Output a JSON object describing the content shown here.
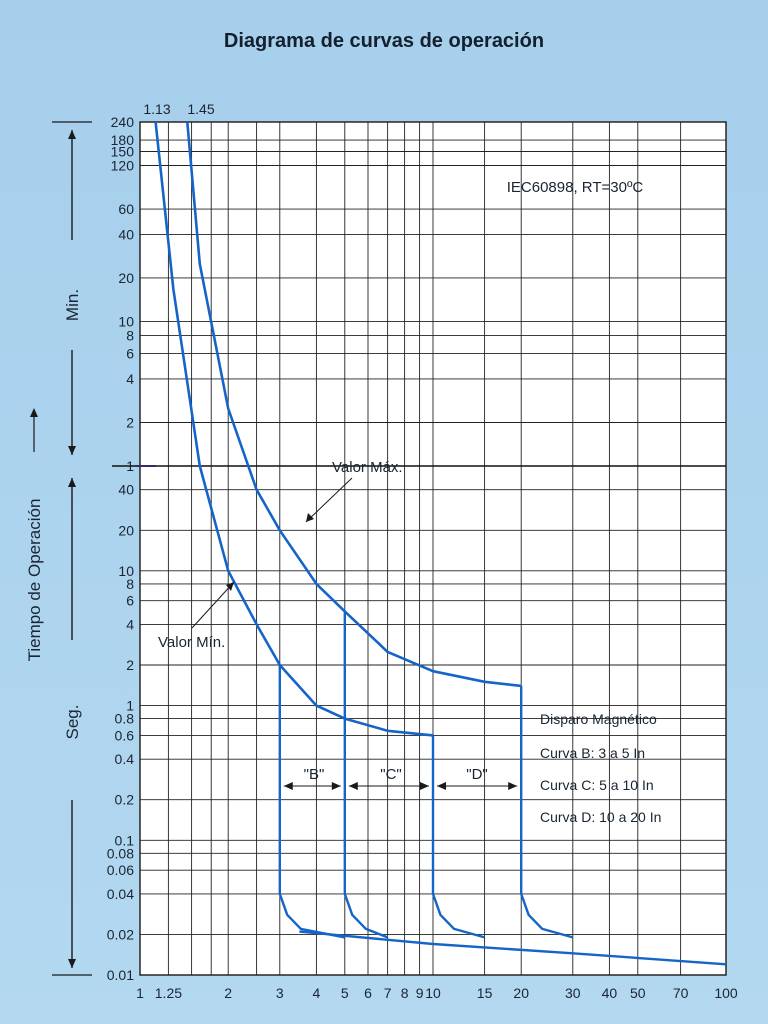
{
  "title": "Diagrama de curvas de operación",
  "chart_data": {
    "type": "line",
    "title": "Diagrama de curvas de operación",
    "xlabel": "",
    "ylabel": "Tiempo de Operación",
    "y_sections": {
      "upper": "Min.",
      "lower": "Seg."
    },
    "x_scale": "log",
    "xlim": [
      1,
      100
    ],
    "x_ticks": [
      "1",
      "1.25",
      "2",
      "3",
      "4",
      "5",
      "6",
      "7",
      "8",
      "9",
      "10",
      "15",
      "20",
      "30",
      "40",
      "50",
      "70",
      "100"
    ],
    "y_min_ticks": [
      "240",
      "180",
      "150",
      "120",
      "60",
      "40",
      "20",
      "10",
      "8",
      "6",
      "4",
      "2",
      "1"
    ],
    "y_sec_ticks": [
      "40",
      "20",
      "10",
      "8",
      "6",
      "4",
      "2",
      "1",
      "0.8",
      "0.6",
      "0.4",
      "0.2",
      "0.1",
      "0.08",
      "0.06",
      "0.04",
      "0.02",
      "0.01"
    ],
    "top_labels": [
      "1.13",
      "1.45"
    ],
    "standard_note": "IEC60898, RT=30ºC",
    "series": [
      {
        "name": "Valor Mín.",
        "points": [
          [
            1.13,
            14400
          ],
          [
            1.3,
            1000
          ],
          [
            1.6,
            60
          ],
          [
            2,
            10
          ],
          [
            2.5,
            4
          ],
          [
            3,
            2
          ],
          [
            4,
            1
          ],
          [
            5,
            0.8
          ],
          [
            7,
            0.65
          ],
          [
            10,
            0.6
          ]
        ]
      },
      {
        "name": "Valor Máx.",
        "points": [
          [
            1.45,
            14400
          ],
          [
            1.6,
            1500
          ],
          [
            2,
            150
          ],
          [
            2.5,
            40
          ],
          [
            3,
            20
          ],
          [
            4,
            8
          ],
          [
            5,
            5
          ],
          [
            7,
            2.5
          ],
          [
            10,
            1.8
          ],
          [
            15,
            1.5
          ],
          [
            20,
            1.4
          ]
        ]
      }
    ],
    "magnetic_curves": [
      {
        "name": "\"B\"",
        "trip_from": 3,
        "trip_to": 5
      },
      {
        "name": "\"C\"",
        "trip_from": 5,
        "trip_to": 10
      },
      {
        "name": "\"D\"",
        "trip_from": 10,
        "trip_to": 20
      }
    ],
    "legend": {
      "title": "Disparo Magnético",
      "items": [
        "Curva B: 3 a 5 In",
        "Curva C: 5 a 10 In",
        "Curva D: 10 a 20 In"
      ],
      "position": "right"
    },
    "labels": {
      "max": "Valor Máx.",
      "min": "Valor Mín."
    }
  }
}
